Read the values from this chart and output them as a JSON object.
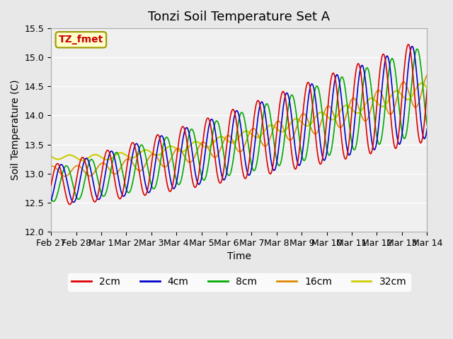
{
  "title": "Tonzi Soil Temperature Set A",
  "xlabel": "Time",
  "ylabel": "Soil Temperature (C)",
  "annotation": "TZ_fmet",
  "ylim": [
    12.0,
    15.5
  ],
  "yticks": [
    12.0,
    12.5,
    13.0,
    13.5,
    14.0,
    14.5,
    15.0,
    15.5
  ],
  "xtick_labels": [
    "Feb 27",
    "Feb 28",
    "Mar 1",
    "Mar 2",
    "Mar 3",
    "Mar 4",
    "Mar 5",
    "Mar 6",
    "Mar 7",
    "Mar 8",
    "Mar 9",
    "Mar 10",
    "Mar 11",
    "Mar 12",
    "Mar 13",
    "Mar 14"
  ],
  "xtick_positions": [
    0,
    1,
    2,
    3,
    4,
    5,
    6,
    7,
    8,
    9,
    10,
    11,
    12,
    13,
    14,
    15
  ],
  "colors": {
    "2cm": "#dd0000",
    "4cm": "#0000cc",
    "8cm": "#00aa00",
    "16cm": "#dd8800",
    "32cm": "#cccc00"
  },
  "legend_labels": [
    "2cm",
    "4cm",
    "8cm",
    "16cm",
    "32cm"
  ],
  "bg_color": "#e8e8e8",
  "plot_bg": "#f0f0f0",
  "annotation_bg": "#ffffcc",
  "annotation_text_color": "#cc0000",
  "annotation_edge_color": "#999900",
  "title_fontsize": 13,
  "label_fontsize": 10,
  "tick_fontsize": 9
}
